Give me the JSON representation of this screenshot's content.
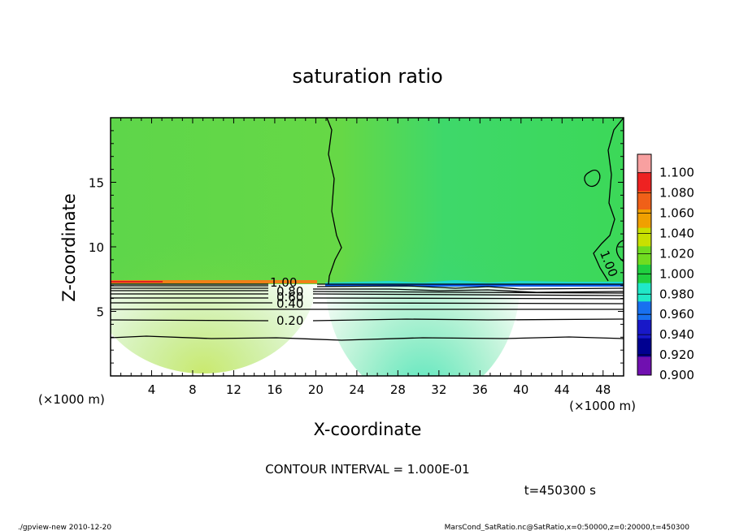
{
  "chart_data": {
    "type": "contour",
    "title": "saturation ratio",
    "xlabel": "X-coordinate",
    "ylabel": "Z-coordinate",
    "x_unit_note_left": "(×1000 m)",
    "x_unit_note_right": "(×1000 m)",
    "xlim": [
      0,
      50
    ],
    "ylim": [
      0,
      20
    ],
    "xticks": [
      4,
      8,
      12,
      16,
      20,
      24,
      28,
      32,
      36,
      40,
      44,
      48
    ],
    "yticks": [
      5,
      10,
      15
    ],
    "contour_labels": [
      "1.00",
      "0.80",
      "0.60",
      "0.40",
      "0.20",
      "1.00"
    ],
    "colorbar": {
      "levels": [
        "1.100",
        "1.080",
        "1.060",
        "1.040",
        "1.020",
        "1.000",
        "0.980",
        "0.960",
        "0.940",
        "0.920",
        "0.900"
      ],
      "colors": [
        "#f8a0a0",
        "#ee2222",
        "#f06018",
        "#f0a000",
        "#c8e000",
        "#70dc20",
        "#20d040",
        "#20e8c8",
        "#1870f0",
        "#1818c8",
        "#000090",
        "#7010b0"
      ]
    },
    "fills": {
      "upper_left": "#68d848",
      "upper_right": "#40d860",
      "saturated_ridge": "#a8e030",
      "below": "#ffffff"
    }
  },
  "footer": {
    "interval": "CONTOUR INTERVAL = 1.000E-01",
    "time": "t=450300 s",
    "left_note": "./gpview-new   2010-12-20",
    "right_note": "MarsCond_SatRatio.nc@SatRatio,x=0:50000,z=0:20000,t=450300"
  }
}
